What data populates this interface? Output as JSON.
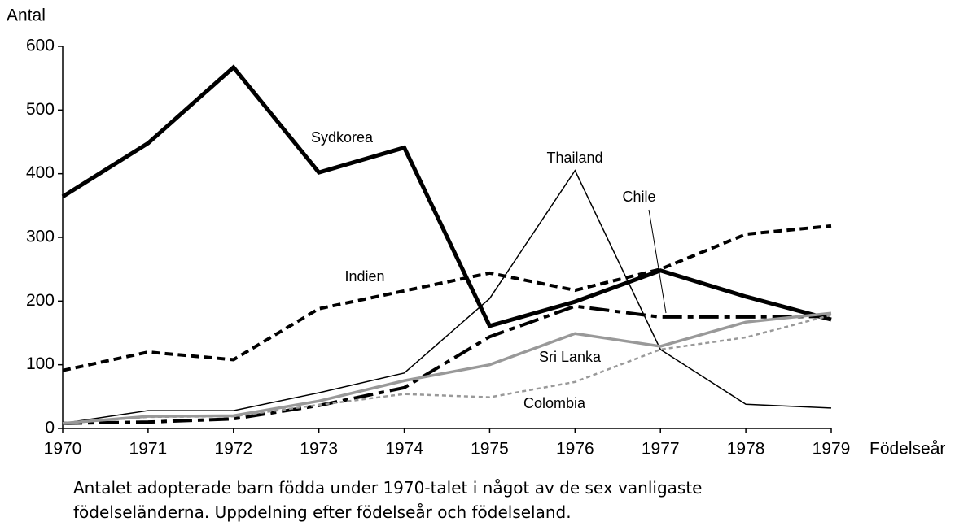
{
  "chart_data": {
    "type": "line",
    "y_label": "Antal",
    "x_label": "Födelseår",
    "caption": [
      "Antalet adopterade barn födda under 1970-talet i något av de sex vanligaste",
      "födelseländerna. Uppdelning efter födelseår och födelseland."
    ],
    "x": [
      1970,
      1971,
      1972,
      1973,
      1974,
      1975,
      1976,
      1977,
      1978,
      1979
    ],
    "xlim": [
      1970,
      1979
    ],
    "xticks": [
      1970,
      1971,
      1972,
      1973,
      1974,
      1975,
      1976,
      1977,
      1978,
      1979
    ],
    "ylim": [
      0,
      600
    ],
    "yticks": [
      0,
      100,
      200,
      300,
      400,
      500,
      600
    ],
    "grid": false,
    "series": [
      {
        "name": "Sydkorea",
        "color": "#000000",
        "dash": "solid",
        "linewidth": 5,
        "values": [
          364,
          448,
          567,
          402,
          441,
          161,
          199,
          248,
          207,
          171
        ]
      },
      {
        "name": "Thailand",
        "color": "#000000",
        "dash": "solid",
        "linewidth": 1.5,
        "values": [
          8,
          28,
          28,
          56,
          87,
          204,
          405,
          124,
          38,
          32
        ]
      },
      {
        "name": "Chile",
        "color": "#000000",
        "dash": "dashdot",
        "linewidth": 4,
        "values": [
          8,
          10,
          15,
          36,
          64,
          144,
          192,
          175,
          175,
          176
        ]
      },
      {
        "name": "Indien",
        "color": "#000000",
        "dash": "dashed",
        "linewidth": 4,
        "values": [
          91,
          120,
          108,
          188,
          216,
          244,
          217,
          250,
          305,
          318
        ]
      },
      {
        "name": "Sri Lanka",
        "color": "#999999",
        "dash": "solid",
        "linewidth": 3.5,
        "values": [
          8,
          19,
          20,
          43,
          75,
          100,
          149,
          129,
          167,
          181
        ]
      },
      {
        "name": "Colombia",
        "color": "#999999",
        "dash": "dotted",
        "linewidth": 2.5,
        "values": [
          8,
          18,
          19,
          37,
          54,
          49,
          73,
          124,
          143,
          178
        ]
      }
    ]
  }
}
